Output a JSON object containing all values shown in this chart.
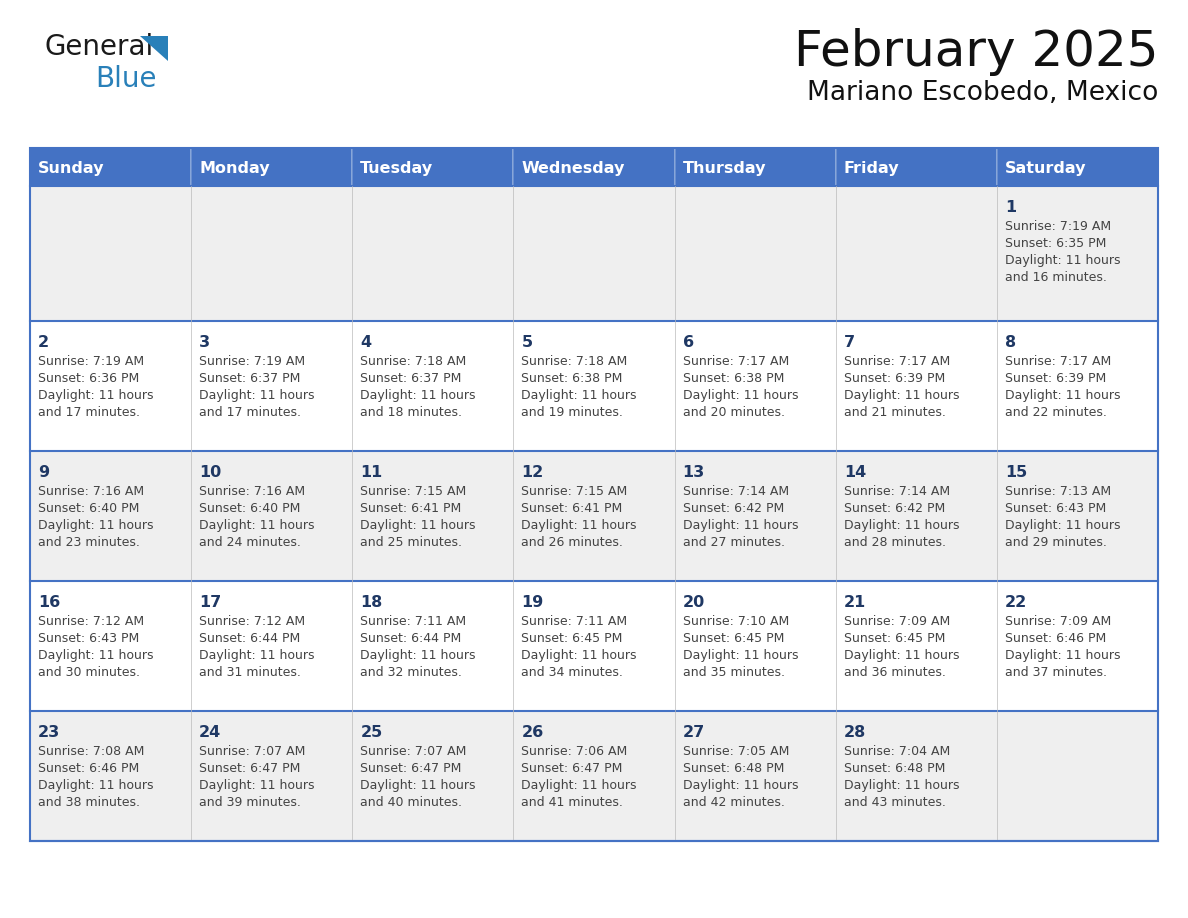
{
  "title": "February 2025",
  "subtitle": "Mariano Escobedo, Mexico",
  "header_bg": "#4472C4",
  "header_text_color": "#FFFFFF",
  "days_of_week": [
    "Sunday",
    "Monday",
    "Tuesday",
    "Wednesday",
    "Thursday",
    "Friday",
    "Saturday"
  ],
  "bg_color": "#FFFFFF",
  "cell_bg_row0": "#EFEFEF",
  "cell_bg_row1": "#FFFFFF",
  "cell_bg_row2": "#EFEFEF",
  "cell_bg_row3": "#FFFFFF",
  "cell_bg_row4": "#EFEFEF",
  "text_color": "#444444",
  "day_num_color": "#1F3864",
  "grid_line_color": "#4472C4",
  "logo_general_color": "#1a1a1a",
  "logo_blue_color": "#2980B9",
  "calendar": [
    [
      null,
      null,
      null,
      null,
      null,
      null,
      1
    ],
    [
      2,
      3,
      4,
      5,
      6,
      7,
      8
    ],
    [
      9,
      10,
      11,
      12,
      13,
      14,
      15
    ],
    [
      16,
      17,
      18,
      19,
      20,
      21,
      22
    ],
    [
      23,
      24,
      25,
      26,
      27,
      28,
      null
    ]
  ],
  "sunrise": {
    "1": "7:19 AM",
    "2": "7:19 AM",
    "3": "7:19 AM",
    "4": "7:18 AM",
    "5": "7:18 AM",
    "6": "7:17 AM",
    "7": "7:17 AM",
    "8": "7:17 AM",
    "9": "7:16 AM",
    "10": "7:16 AM",
    "11": "7:15 AM",
    "12": "7:15 AM",
    "13": "7:14 AM",
    "14": "7:14 AM",
    "15": "7:13 AM",
    "16": "7:12 AM",
    "17": "7:12 AM",
    "18": "7:11 AM",
    "19": "7:11 AM",
    "20": "7:10 AM",
    "21": "7:09 AM",
    "22": "7:09 AM",
    "23": "7:08 AM",
    "24": "7:07 AM",
    "25": "7:07 AM",
    "26": "7:06 AM",
    "27": "7:05 AM",
    "28": "7:04 AM"
  },
  "sunset": {
    "1": "6:35 PM",
    "2": "6:36 PM",
    "3": "6:37 PM",
    "4": "6:37 PM",
    "5": "6:38 PM",
    "6": "6:38 PM",
    "7": "6:39 PM",
    "8": "6:39 PM",
    "9": "6:40 PM",
    "10": "6:40 PM",
    "11": "6:41 PM",
    "12": "6:41 PM",
    "13": "6:42 PM",
    "14": "6:42 PM",
    "15": "6:43 PM",
    "16": "6:43 PM",
    "17": "6:44 PM",
    "18": "6:44 PM",
    "19": "6:45 PM",
    "20": "6:45 PM",
    "21": "6:45 PM",
    "22": "6:46 PM",
    "23": "6:46 PM",
    "24": "6:47 PM",
    "25": "6:47 PM",
    "26": "6:47 PM",
    "27": "6:48 PM",
    "28": "6:48 PM"
  },
  "daylight_hours": {
    "1": "11 hours and 16 minutes.",
    "2": "11 hours and 17 minutes.",
    "3": "11 hours and 17 minutes.",
    "4": "11 hours and 18 minutes.",
    "5": "11 hours and 19 minutes.",
    "6": "11 hours and 20 minutes.",
    "7": "11 hours and 21 minutes.",
    "8": "11 hours and 22 minutes.",
    "9": "11 hours and 23 minutes.",
    "10": "11 hours and 24 minutes.",
    "11": "11 hours and 25 minutes.",
    "12": "11 hours and 26 minutes.",
    "13": "11 hours and 27 minutes.",
    "14": "11 hours and 28 minutes.",
    "15": "11 hours and 29 minutes.",
    "16": "11 hours and 30 minutes.",
    "17": "11 hours and 31 minutes.",
    "18": "11 hours and 32 minutes.",
    "19": "11 hours and 34 minutes.",
    "20": "11 hours and 35 minutes.",
    "21": "11 hours and 36 minutes.",
    "22": "11 hours and 37 minutes.",
    "23": "11 hours and 38 minutes.",
    "24": "11 hours and 39 minutes.",
    "25": "11 hours and 40 minutes.",
    "26": "11 hours and 41 minutes.",
    "27": "11 hours and 42 minutes.",
    "28": "11 hours and 43 minutes."
  },
  "fig_width": 11.88,
  "fig_height": 9.18,
  "fig_dpi": 100
}
